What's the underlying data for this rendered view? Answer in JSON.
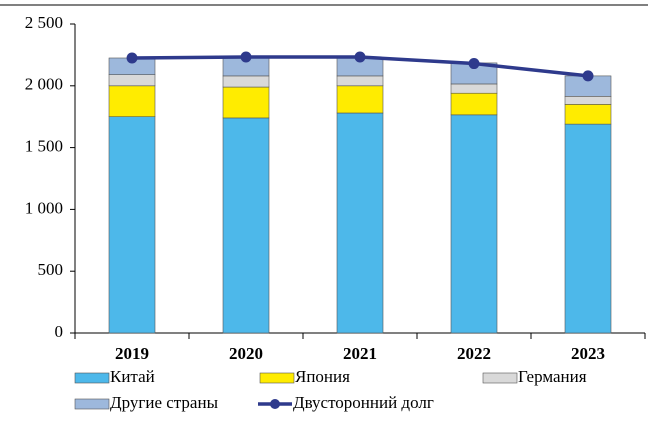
{
  "chart_data": {
    "type": "bar",
    "stacked": true,
    "categories": [
      "2019",
      "2020",
      "2021",
      "2022",
      "2023"
    ],
    "series": [
      {
        "name": "Китай",
        "color": "#4db8ea",
        "values": [
          1750,
          1740,
          1780,
          1765,
          1690
        ]
      },
      {
        "name": "Япония",
        "color": "#ffec00",
        "values": [
          250,
          250,
          220,
          175,
          160
        ]
      },
      {
        "name": "Германия",
        "color": "#d9d9d9",
        "values": [
          90,
          90,
          80,
          75,
          65
        ]
      },
      {
        "name": "Другие страны",
        "color": "#9db8dc",
        "values": [
          135,
          150,
          150,
          170,
          165
        ]
      },
      {
        "name": "Двусторонний долг",
        "color": "#2e3a8c",
        "type": "line",
        "values": [
          2225,
          2233,
          2233,
          2180,
          2080
        ]
      }
    ],
    "ylim": [
      0,
      2500
    ],
    "yticks": [
      0,
      500,
      {
        "value": 1000,
        "label": "1 000"
      },
      {
        "value": 1500,
        "label": "1 500"
      },
      {
        "value": 2000,
        "label": "2 000"
      },
      {
        "value": 2500,
        "label": "2 500"
      }
    ],
    "grid": false
  }
}
